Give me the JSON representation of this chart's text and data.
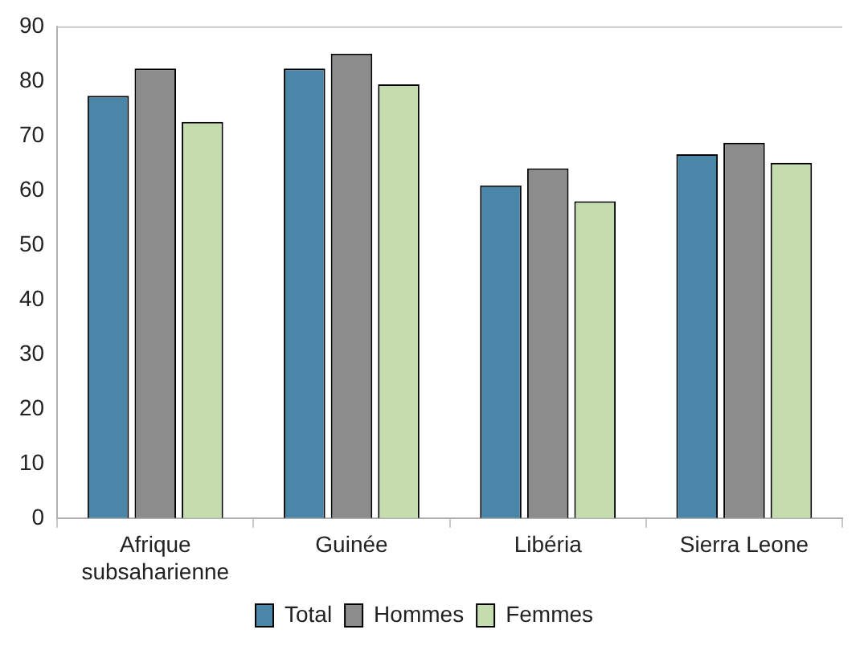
{
  "chart_data": {
    "type": "bar",
    "categories": [
      "Afrique subsaharienne",
      "Guinée",
      "Libéria",
      "Sierra Leone"
    ],
    "series": [
      {
        "name": "Total",
        "color": "#4a86a8",
        "values": [
          77.3,
          82.3,
          60.9,
          66.6
        ]
      },
      {
        "name": "Hommes",
        "color": "#8c8c8c",
        "values": [
          82.3,
          85.0,
          64.0,
          68.7
        ]
      },
      {
        "name": "Femmes",
        "color": "#c4dcae",
        "values": [
          72.5,
          79.4,
          58.0,
          65.0
        ]
      }
    ],
    "ylim": [
      0,
      90
    ],
    "yticks": [
      0,
      10,
      20,
      30,
      40,
      50,
      60,
      70,
      80,
      90
    ],
    "grid": false,
    "legend": "bottom"
  }
}
